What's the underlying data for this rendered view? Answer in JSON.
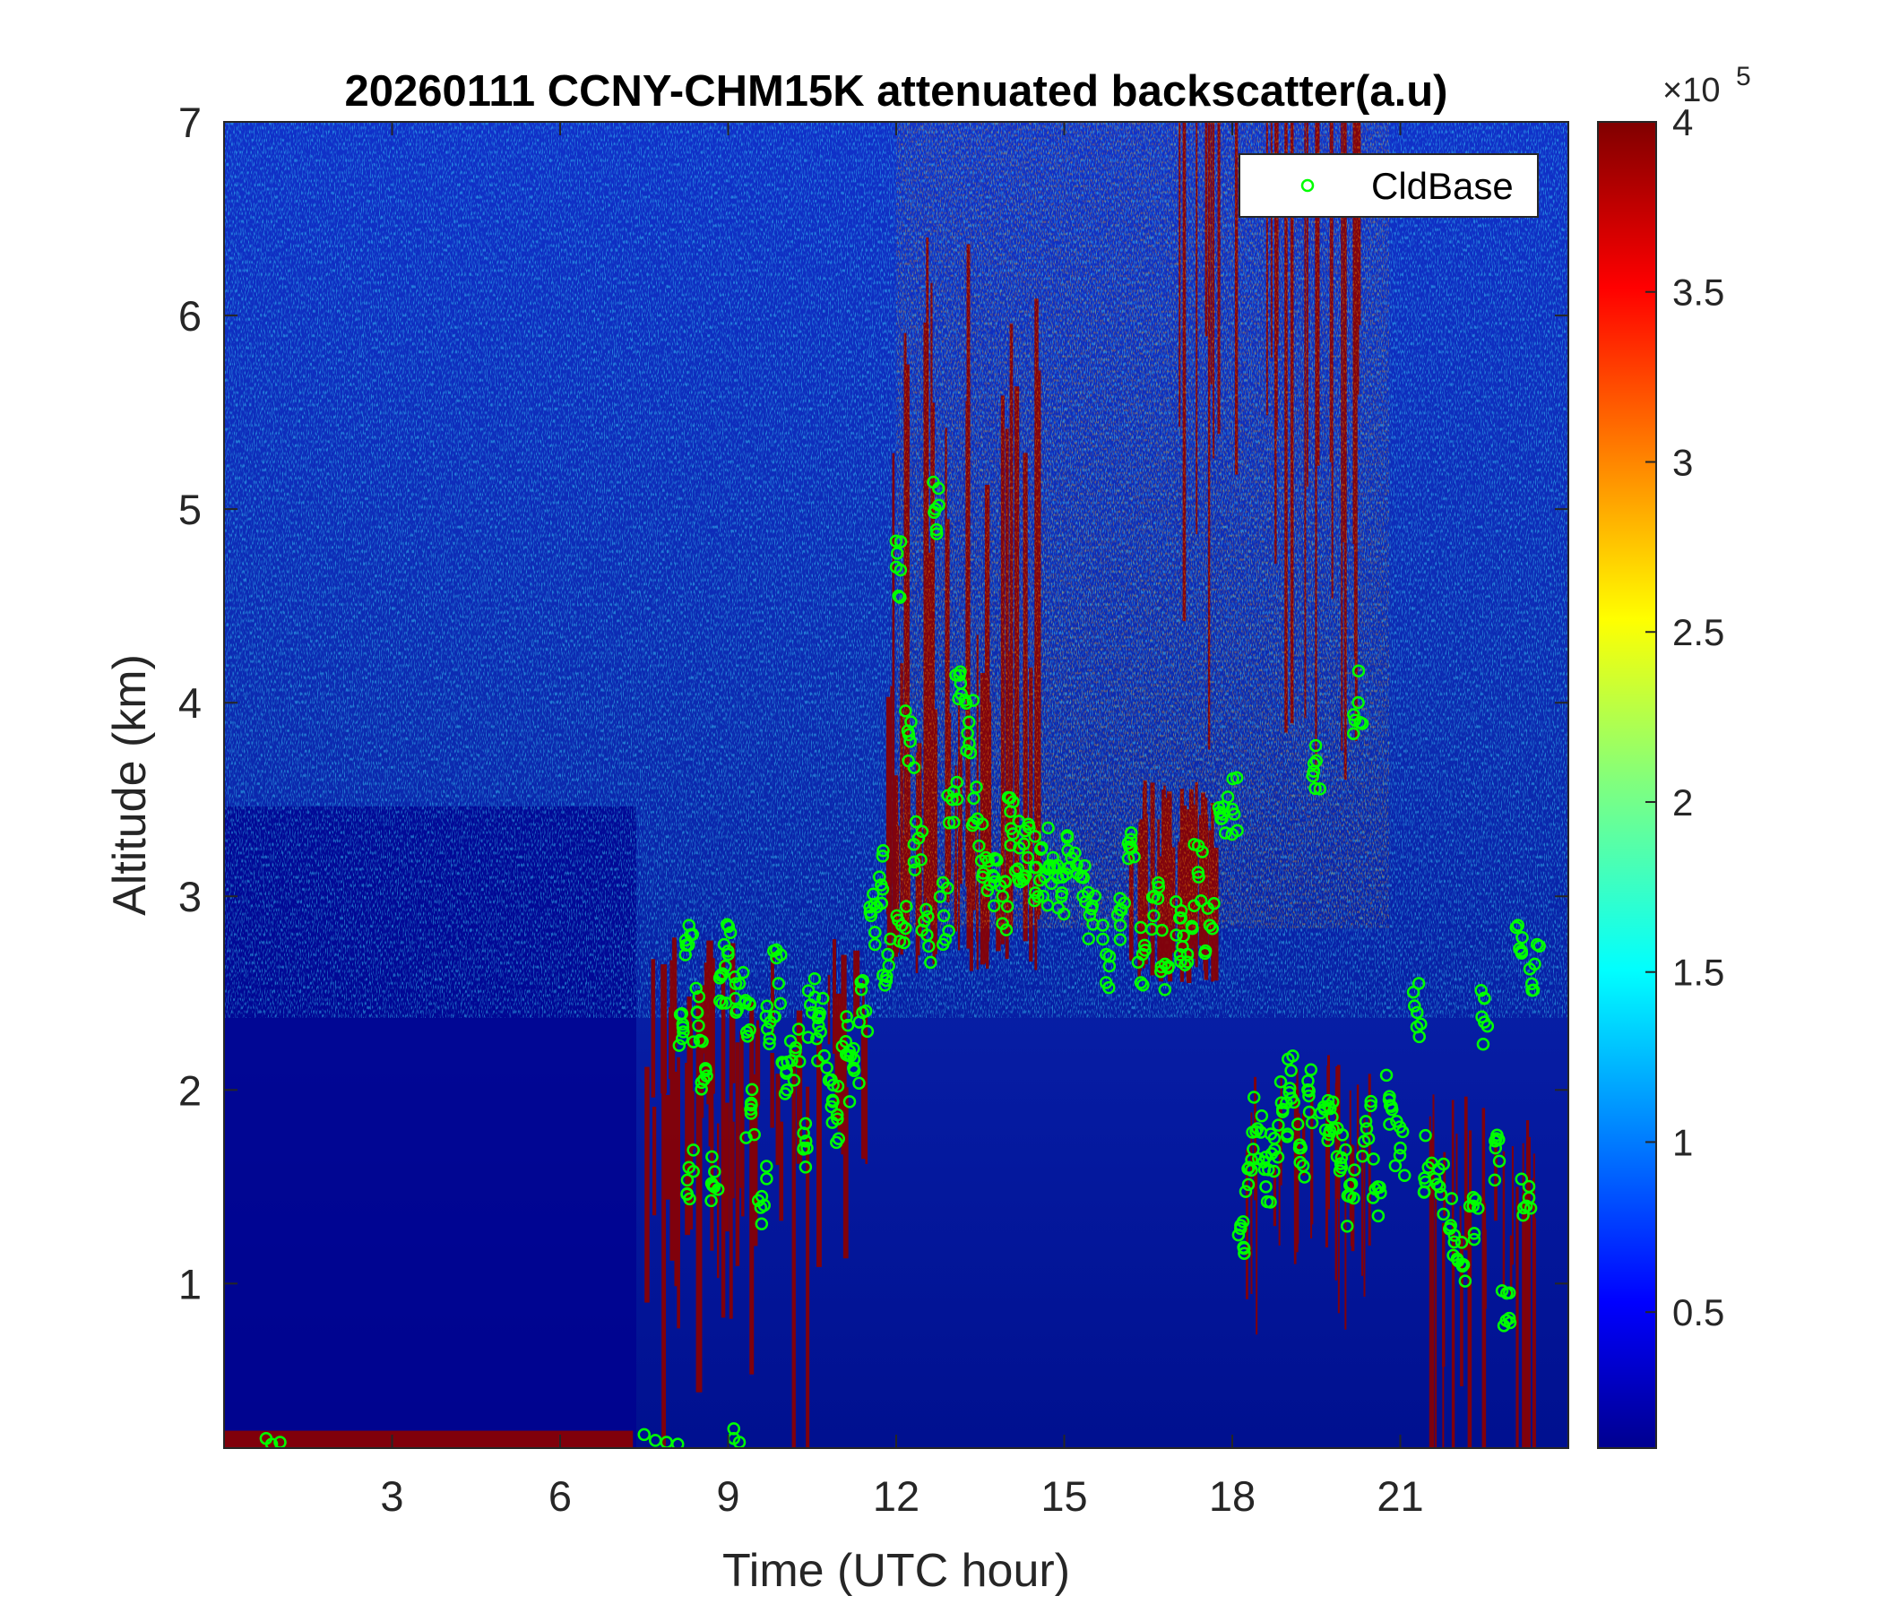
{
  "chart_data": {
    "type": "heatmap",
    "title": "20260111 CCNY-CHM15K attenuated backscatter(a.u)",
    "xlabel": "Time (UTC hour)",
    "ylabel": "Altitude (km)",
    "xlim": [
      0,
      24
    ],
    "ylim": [
      0.15,
      7
    ],
    "xticks": [
      "3",
      "6",
      "9",
      "12",
      "15",
      "18",
      "21"
    ],
    "yticks": [
      "1",
      "2",
      "3",
      "4",
      "5",
      "6",
      "7"
    ],
    "grid": false,
    "colorbar": {
      "colormap": "jet",
      "clim": [
        0.1,
        4
      ],
      "ticks": [
        "0.5",
        "1",
        "1.5",
        "2",
        "2.5",
        "3",
        "3.5",
        "4"
      ],
      "exponent_base": "×10",
      "exponent_power": "5"
    },
    "legend": {
      "position": "top-right",
      "entries": [
        "CldBase"
      ]
    },
    "series": [
      {
        "name": "CldBase",
        "marker": "circle",
        "color": "#00ff00",
        "x": [
          0.75,
          0.85,
          1.0,
          7.5,
          7.7,
          7.9,
          8.1,
          8.3,
          8.2,
          8.3,
          8.45,
          8.6,
          8.75,
          8.9,
          9.0,
          9.1,
          9.2,
          9.3,
          9.1,
          9.2,
          9.4,
          9.6,
          9.75,
          9.9,
          10.05,
          10.2,
          10.35,
          10.5,
          10.65,
          10.8,
          10.95,
          11.1,
          11.25,
          11.4,
          11.55,
          11.7,
          11.85,
          12.0,
          12.1,
          12.25,
          12.4,
          12.55,
          12.7,
          12.85,
          13.0,
          13.15,
          13.3,
          13.45,
          13.6,
          13.75,
          13.9,
          14.05,
          14.2,
          14.35,
          14.5,
          14.65,
          14.8,
          14.95,
          15.1,
          15.3,
          15.5,
          15.75,
          16.0,
          16.2,
          16.4,
          16.6,
          16.8,
          17.0,
          17.2,
          17.4,
          17.6,
          17.8,
          18.0,
          18.15,
          18.3,
          18.45,
          18.6,
          18.75,
          18.9,
          19.05,
          19.2,
          19.35,
          19.5,
          19.65,
          19.8,
          19.95,
          20.1,
          20.25,
          20.4,
          20.6,
          20.8,
          21.0,
          21.3,
          21.5,
          21.7,
          21.9,
          22.1,
          22.3,
          22.5,
          22.7,
          22.9,
          23.1,
          23.25,
          23.4
        ],
        "y": [
          0.2,
          0.17,
          0.18,
          0.22,
          0.19,
          0.18,
          0.17,
          2.85,
          2.3,
          1.6,
          2.4,
          2.1,
          1.5,
          2.6,
          2.7,
          0.25,
          2.55,
          2.45,
          0.2,
          0.18,
          1.9,
          1.45,
          2.35,
          2.55,
          2.0,
          2.2,
          1.7,
          2.4,
          2.3,
          2.05,
          1.85,
          2.25,
          2.1,
          2.4,
          2.9,
          3.1,
          2.7,
          4.7,
          2.85,
          3.8,
          3.3,
          2.8,
          5.0,
          2.9,
          3.5,
          4.1,
          3.9,
          3.4,
          3.2,
          3.1,
          3.0,
          3.35,
          3.25,
          3.2,
          3.15,
          3.1,
          3.2,
          3.0,
          3.15,
          3.1,
          2.95,
          2.7,
          2.85,
          3.25,
          2.7,
          2.9,
          2.65,
          2.8,
          2.7,
          3.1,
          2.85,
          3.4,
          3.45,
          1.3,
          1.6,
          1.8,
          1.5,
          1.75,
          1.9,
          2.1,
          1.7,
          2.0,
          3.7,
          1.9,
          1.8,
          1.6,
          1.45,
          4.0,
          1.8,
          1.5,
          1.95,
          1.7,
          2.4,
          1.6,
          1.5,
          1.3,
          1.1,
          1.4,
          2.35,
          1.7,
          0.95,
          2.85,
          1.4,
          2.65
        ]
      }
    ]
  }
}
